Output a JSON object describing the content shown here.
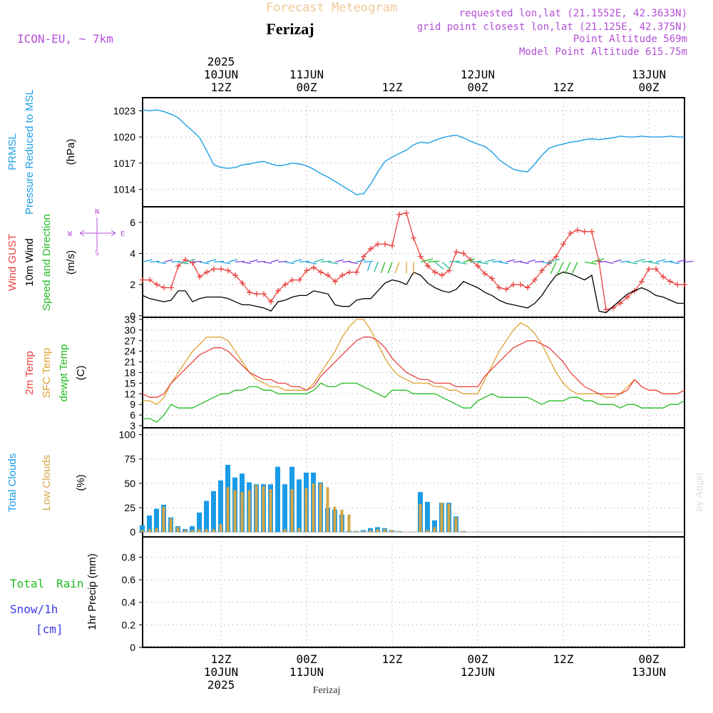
{
  "header": {
    "title": "Forecast Meteogram",
    "location": "Ferizaj",
    "model": "ICON-EU, ~ 7km",
    "requested": "requested lon,lat (21.1552E, 42.3633N)",
    "grid": "grid point closest lon,lat (21.125E, 42.375N)",
    "point_alt": "Point Altitude 569m",
    "model_alt": "Model Point Altitude 615.75m"
  },
  "top_axis": {
    "year": "2025",
    "labels": [
      {
        "hour": 12,
        "l1": "10JUN",
        "l2": "12Z"
      },
      {
        "hour": 24,
        "l1": "11JUN",
        "l2": "00Z"
      },
      {
        "hour": 36,
        "l1": "",
        "l2": "12Z"
      },
      {
        "hour": 48,
        "l1": "12JUN",
        "l2": "00Z"
      },
      {
        "hour": 60,
        "l1": "",
        "l2": "12Z"
      },
      {
        "hour": 72,
        "l1": "13JUN",
        "l2": "00Z"
      }
    ]
  },
  "bottom_axis": {
    "year": "2025",
    "labels": [
      {
        "hour": 12,
        "l1": "12Z",
        "l2": "10JUN"
      },
      {
        "hour": 24,
        "l1": "00Z",
        "l2": "11JUN"
      },
      {
        "hour": 36,
        "l1": "12Z",
        "l2": ""
      },
      {
        "hour": 48,
        "l1": "00Z",
        "l2": "12JUN"
      },
      {
        "hour": 60,
        "l1": "12Z",
        "l2": ""
      },
      {
        "hour": 72,
        "l1": "00Z",
        "l2": "13JUN"
      }
    ],
    "location": "Ferizaj"
  },
  "watermark": "by Angel",
  "panels": {
    "pressure": {
      "label1": "PRMSL",
      "label2": "Pressure Reduced to MSL",
      "unit": "(hPa)",
      "ticks": [
        "1014",
        "1017",
        "1020",
        "1023"
      ]
    },
    "wind": {
      "label_gust": "Wind GUST",
      "label_10m": "10m Wind",
      "label_dir": "Speed and Direction",
      "unit": "(m/s)",
      "ticks": [
        "0",
        "2",
        "4",
        "6"
      ],
      "compass": {
        "n": "N",
        "s": "S",
        "w": "W",
        "e": "E"
      }
    },
    "temp": {
      "label1": "2m Temp",
      "label2": "SFC Temp",
      "label3": "dewpt Temp",
      "unit": "(C)",
      "ticks": [
        "3",
        "6",
        "9",
        "12",
        "15",
        "18",
        "21",
        "24",
        "27",
        "30",
        "33"
      ]
    },
    "clouds": {
      "label1": "Total Clouds",
      "label2": "Low Clouds",
      "unit": "(%)",
      "ticks": [
        "0",
        "25",
        "50",
        "75",
        "100"
      ]
    },
    "precip": {
      "label1": "Total",
      "label1b": "Rain",
      "label2": "Snow/1h",
      "label3": "[cm]",
      "unit": "1hr Precip (mm)",
      "ticks": [
        "0",
        "0.2",
        "0.4",
        "0.6",
        "0.8"
      ]
    }
  },
  "colors": {
    "pressure": "#1e9fe6",
    "gust": "#e8423f",
    "wind10m": "#000000",
    "temp2m": "#e8423f",
    "sfc": "#e0a030",
    "dewpt": "#22bb22",
    "total_clouds": "#1a9be8",
    "low_clouds": "#d4a646",
    "title": "#f0c896",
    "meta": "#b44fd8",
    "snow": "#3a3ae8"
  },
  "chart_data": [
    {
      "type": "line",
      "name": "pressure",
      "xlabel": "time (hours from 10JUN 00Z)",
      "ylabel": "hPa",
      "ylim": [
        1012.0,
        1024.5
      ],
      "x": [
        1,
        2,
        3,
        4,
        5,
        6,
        7,
        8,
        9,
        10,
        11,
        12,
        13,
        14,
        15,
        16,
        17,
        18,
        19,
        20,
        21,
        22,
        23,
        24,
        25,
        26,
        27,
        28,
        29,
        30,
        31,
        32,
        33,
        34,
        35,
        36,
        37,
        38,
        39,
        40,
        41,
        42,
        43,
        44,
        45,
        46,
        47,
        48,
        49,
        50,
        51,
        52,
        53,
        54,
        55,
        56,
        57,
        58,
        59,
        60,
        61,
        62,
        63,
        64,
        65,
        66,
        67,
        68,
        69,
        70,
        71,
        72,
        73,
        74,
        75,
        76,
        77
      ],
      "series": [
        {
          "name": "PRMSL",
          "values": [
            1023.1,
            1023.0,
            1023.1,
            1022.9,
            1022.6,
            1022.2,
            1021.4,
            1020.7,
            1019.9,
            1018.4,
            1016.8,
            1016.5,
            1016.4,
            1016.5,
            1016.8,
            1016.9,
            1017.1,
            1017.2,
            1016.9,
            1016.7,
            1016.8,
            1017.0,
            1016.9,
            1016.7,
            1016.3,
            1015.8,
            1015.4,
            1014.9,
            1014.4,
            1013.9,
            1013.4,
            1013.5,
            1014.6,
            1016.0,
            1017.2,
            1017.7,
            1018.1,
            1018.5,
            1019.1,
            1019.4,
            1019.3,
            1019.6,
            1019.9,
            1020.1,
            1020.2,
            1019.9,
            1019.5,
            1019.2,
            1018.9,
            1018.3,
            1017.4,
            1016.8,
            1016.3,
            1016.1,
            1016.0,
            1016.9,
            1017.9,
            1018.7,
            1019.0,
            1019.2,
            1019.4,
            1019.5,
            1019.7,
            1019.8,
            1019.7,
            1019.8,
            1019.9,
            1020.1,
            1020.0,
            1020.0,
            1020.1,
            1020.0,
            1020.0,
            1020.0,
            1020.1,
            1020.0,
            1020.0
          ]
        }
      ]
    },
    {
      "type": "line",
      "name": "wind",
      "xlabel": "time (hours from 10JUN 00Z)",
      "ylabel": "m/s",
      "ylim": [
        -0.1,
        7.0
      ],
      "x": [
        1,
        2,
        3,
        4,
        5,
        6,
        7,
        8,
        9,
        10,
        11,
        12,
        13,
        14,
        15,
        16,
        17,
        18,
        19,
        20,
        21,
        22,
        23,
        24,
        25,
        26,
        27,
        28,
        29,
        30,
        31,
        32,
        33,
        34,
        35,
        36,
        37,
        38,
        39,
        40,
        41,
        42,
        43,
        44,
        45,
        46,
        47,
        48,
        49,
        50,
        51,
        52,
        53,
        54,
        55,
        56,
        57,
        58,
        59,
        60,
        61,
        62,
        63,
        64,
        65,
        66,
        67,
        68,
        69,
        70,
        71,
        72,
        73,
        74,
        75,
        76,
        77
      ],
      "series": [
        {
          "name": "Wind GUST",
          "values": [
            2.3,
            2.3,
            2.0,
            1.8,
            1.8,
            3.2,
            3.6,
            3.4,
            2.5,
            2.8,
            3.0,
            3.0,
            2.9,
            2.6,
            2.1,
            1.5,
            1.4,
            1.4,
            0.9,
            1.6,
            2.0,
            2.3,
            2.3,
            2.9,
            3.1,
            2.8,
            2.6,
            2.2,
            2.6,
            2.8,
            2.8,
            3.8,
            4.3,
            4.6,
            4.6,
            4.5,
            6.5,
            6.6,
            5.0,
            3.8,
            3.2,
            2.8,
            2.6,
            2.9,
            4.1,
            4.0,
            3.6,
            3.2,
            2.7,
            2.4,
            1.8,
            1.7,
            2.0,
            2.0,
            1.8,
            2.3,
            2.9,
            3.4,
            3.8,
            4.6,
            5.3,
            5.5,
            5.4,
            5.4,
            3.5,
            0.4,
            0.5,
            0.8,
            1.2,
            1.6,
            2.2,
            3.0,
            3.0,
            2.5,
            2.2,
            2.0,
            2.0
          ]
        },
        {
          "name": "10m Wind",
          "values": [
            1.3,
            1.1,
            1.0,
            0.9,
            1.0,
            1.6,
            1.6,
            0.9,
            1.1,
            1.2,
            1.2,
            1.2,
            1.1,
            0.9,
            0.7,
            0.7,
            0.6,
            0.5,
            0.3,
            0.9,
            1.0,
            1.2,
            1.3,
            1.3,
            1.6,
            1.5,
            1.4,
            0.7,
            0.6,
            0.6,
            1.0,
            1.1,
            1.1,
            1.6,
            2.1,
            2.3,
            2.2,
            2.0,
            2.8,
            2.6,
            2.1,
            1.8,
            1.6,
            1.5,
            1.7,
            2.2,
            2.0,
            1.8,
            1.5,
            1.3,
            1.0,
            0.8,
            0.7,
            0.6,
            0.5,
            0.8,
            1.3,
            2.0,
            2.6,
            2.8,
            2.7,
            2.5,
            2.3,
            2.6,
            0.3,
            0.2,
            0.6,
            1.0,
            1.4,
            1.6,
            1.8,
            1.6,
            1.3,
            1.2,
            1.0,
            0.8,
            0.8
          ]
        }
      ]
    },
    {
      "type": "line",
      "name": "temperature",
      "xlabel": "time (hours from 10JUN 00Z)",
      "ylabel": "C",
      "ylim": [
        2.4,
        33.6
      ],
      "x": [
        1,
        2,
        3,
        4,
        5,
        6,
        7,
        8,
        9,
        10,
        11,
        12,
        13,
        14,
        15,
        16,
        17,
        18,
        19,
        20,
        21,
        22,
        23,
        24,
        25,
        26,
        27,
        28,
        29,
        30,
        31,
        32,
        33,
        34,
        35,
        36,
        37,
        38,
        39,
        40,
        41,
        42,
        43,
        44,
        45,
        46,
        47,
        48,
        49,
        50,
        51,
        52,
        53,
        54,
        55,
        56,
        57,
        58,
        59,
        60,
        61,
        62,
        63,
        64,
        65,
        66,
        67,
        68,
        69,
        70,
        71,
        72,
        73,
        74,
        75,
        76,
        77
      ],
      "series": [
        {
          "name": "2m Temp",
          "values": [
            12,
            11,
            11,
            12,
            15,
            17,
            19,
            21,
            23,
            24,
            25,
            25,
            24,
            22,
            20,
            18,
            17,
            16,
            16,
            15,
            15,
            14,
            14,
            13,
            14,
            17,
            19,
            21,
            23,
            25,
            27,
            28,
            28,
            27,
            25,
            22,
            20,
            18,
            17,
            16,
            16,
            15,
            15,
            15,
            14,
            14,
            14,
            14,
            17,
            19,
            21,
            23,
            25,
            26,
            27,
            27,
            26,
            25,
            23,
            21,
            18,
            16,
            14,
            13,
            12,
            12,
            12,
            12,
            13,
            16,
            14,
            13,
            13,
            12,
            12,
            12,
            13
          ]
        },
        {
          "name": "SFC Temp",
          "values": [
            10,
            10,
            9,
            11,
            15,
            18,
            21,
            24,
            26,
            28,
            28,
            28,
            27,
            24,
            21,
            18,
            16,
            15,
            14,
            14,
            13,
            13,
            13,
            13,
            15,
            18,
            21,
            24,
            28,
            31,
            33,
            33,
            30,
            26,
            22,
            19,
            17,
            16,
            15,
            15,
            15,
            14,
            14,
            13,
            13,
            12,
            12,
            12,
            16,
            20,
            24,
            27,
            30,
            32,
            31,
            29,
            26,
            22,
            18,
            15,
            13,
            12,
            12,
            12,
            12,
            11,
            11,
            12,
            14,
            16,
            14,
            13,
            13,
            12,
            12,
            12,
            13
          ]
        },
        {
          "name": "dewpt Temp",
          "values": [
            5,
            5,
            4,
            6,
            9,
            8,
            8,
            8,
            9,
            10,
            11,
            12,
            12,
            13,
            13,
            14,
            14,
            13,
            13,
            12,
            12,
            12,
            12,
            12,
            13,
            15,
            14,
            14,
            15,
            15,
            15,
            14,
            13,
            12,
            11,
            13,
            13,
            13,
            12,
            12,
            12,
            12,
            11,
            10,
            9,
            8,
            8,
            10,
            11,
            12,
            11,
            11,
            11,
            11,
            11,
            10,
            9,
            10,
            10,
            10,
            11,
            11,
            10,
            10,
            9,
            9,
            9,
            8,
            9,
            9,
            8,
            8,
            8,
            8,
            9,
            9,
            10
          ]
        }
      ]
    },
    {
      "type": "bar",
      "name": "clouds",
      "xlabel": "time (hours from 10JUN 00Z)",
      "ylabel": "%",
      "ylim": [
        -5,
        107
      ],
      "x": [
        1,
        2,
        3,
        4,
        5,
        6,
        7,
        8,
        9,
        10,
        11,
        12,
        13,
        14,
        15,
        16,
        17,
        18,
        19,
        20,
        21,
        22,
        23,
        24,
        25,
        26,
        27,
        28,
        29,
        30,
        31,
        32,
        33,
        34,
        35,
        36,
        37,
        38,
        39,
        40,
        41,
        42,
        43,
        44,
        45,
        46,
        47,
        48,
        49,
        50,
        51,
        52,
        53,
        54,
        55,
        56,
        57,
        58,
        59,
        60,
        61,
        62,
        63,
        64,
        65,
        66,
        67,
        68,
        69,
        70,
        71,
        72,
        73,
        74,
        75,
        76,
        77
      ],
      "series": [
        {
          "name": "Total Clouds",
          "values": [
            7,
            17,
            24,
            28,
            15,
            6,
            3,
            6,
            20,
            32,
            42,
            53,
            69,
            56,
            60,
            51,
            49,
            49,
            49,
            67,
            49,
            67,
            54,
            61,
            61,
            51,
            25,
            23,
            18,
            1,
            1,
            2,
            4,
            5,
            4,
            2,
            1,
            0,
            0,
            41,
            31,
            12,
            30,
            30,
            16,
            1,
            0,
            0,
            0,
            0,
            0,
            0,
            0,
            0,
            0,
            0,
            0,
            0,
            0,
            0,
            0,
            0,
            0,
            0,
            0,
            0,
            0,
            0,
            0,
            0,
            0,
            0,
            0,
            0,
            0,
            0,
            0
          ]
        },
        {
          "name": "Low Clouds",
          "values": [
            2,
            3,
            4,
            26,
            14,
            5,
            2,
            2,
            3,
            3,
            3,
            8,
            46,
            43,
            41,
            43,
            48,
            47,
            44,
            0,
            3,
            44,
            4,
            45,
            50,
            50,
            46,
            26,
            23,
            18,
            1,
            1,
            2,
            3,
            3,
            2,
            1,
            0,
            0,
            29,
            2,
            5,
            30,
            29,
            15,
            1,
            0,
            0,
            0,
            0,
            0,
            0,
            0,
            0,
            0,
            0,
            0,
            0,
            0,
            0,
            0,
            0,
            0,
            0,
            0,
            0,
            0,
            0,
            0,
            0,
            0,
            0,
            0,
            0,
            0,
            0,
            0
          ]
        }
      ]
    },
    {
      "type": "bar",
      "name": "precipitation",
      "xlabel": "time (hours from 10JUN 00Z)",
      "ylabel": "1hr Precip (mm)",
      "ylim": [
        0,
        0.98
      ],
      "series": [
        {
          "name": "Total Rain",
          "values": []
        }
      ]
    }
  ]
}
